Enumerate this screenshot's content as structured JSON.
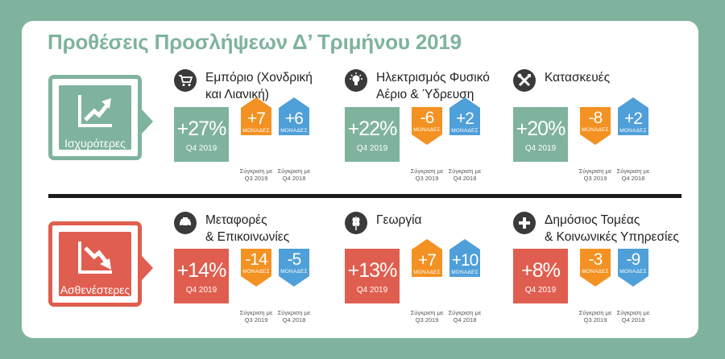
{
  "title": "Προθέσεις Προσλήψεων Δ’ Τριμήνου 2019",
  "colors": {
    "green": "#7fb39d",
    "red": "#e05e4f",
    "orange": "#f39222",
    "blue": "#4f9fd9"
  },
  "captions": {
    "cmp_q3": "Σύγκριση με\nQ3 2019",
    "cmp_q4": "Σύγκριση με\nQ4 2018"
  },
  "stronger": {
    "label": "Ισχυρότερες",
    "icon": "trend-up-icon",
    "sectors": [
      {
        "name": "Εμπόριο (Χονδρική\nκαι Λιανική)",
        "icon": "shopping-cart-icon",
        "value": "+27%",
        "quarter": "Q4 2019",
        "vs_q3": "+7",
        "vs_q3_unit": "ΜΟΝΑΔΕΣ",
        "vs_q4": "+6",
        "vs_q4_unit": "ΜΟΝΑΔΕΣ"
      },
      {
        "name": "Ηλεκτρισμός Φυσικό\nΑέριο & Ύδρευση",
        "icon": "lightbulb-icon",
        "value": "+22%",
        "quarter": "Q4 2019",
        "vs_q3": "-6",
        "vs_q3_unit": "ΜΟΝΑΔΕΣ",
        "vs_q4": "+2",
        "vs_q4_unit": "ΜΟΝΑΔΕΣ"
      },
      {
        "name": "Κατασκευές",
        "icon": "tools-icon",
        "value": "+20%",
        "quarter": "Q4 2019",
        "vs_q3": "-8",
        "vs_q3_unit": "ΜΟΝΑΔΕΣ",
        "vs_q4": "+2",
        "vs_q4_unit": "ΜΟΝΑΔΕΣ"
      }
    ]
  },
  "weaker": {
    "label": "Ασθενέστερες",
    "icon": "trend-down-icon",
    "sectors": [
      {
        "name": "Μεταφορές\n& Επικοινωνίες",
        "icon": "car-icon",
        "value": "+14%",
        "quarter": "Q4 2019",
        "vs_q3": "-14",
        "vs_q3_unit": "ΜΟΝΑΔΕΣ",
        "vs_q4": "-5",
        "vs_q4_unit": "ΜΟΝΑΔΕΣ"
      },
      {
        "name": "Γεωργία",
        "icon": "wheat-icon",
        "value": "+13%",
        "quarter": "Q4 2019",
        "vs_q3": "+7",
        "vs_q3_unit": "ΜΟΝΑΔΕΣ",
        "vs_q4": "+10",
        "vs_q4_unit": "ΜΟΝΑΔΕΣ"
      },
      {
        "name": "Δημόσιος Τομέας\n& Κοινωνικές Υπηρεσίες",
        "icon": "plus-icon",
        "value": "+8%",
        "quarter": "Q4 2019",
        "vs_q3": "-3",
        "vs_q3_unit": "ΜΟΝΑΔΕΣ",
        "vs_q4": "-9",
        "vs_q4_unit": "ΜΟΝΑΔΕΣ"
      }
    ]
  }
}
